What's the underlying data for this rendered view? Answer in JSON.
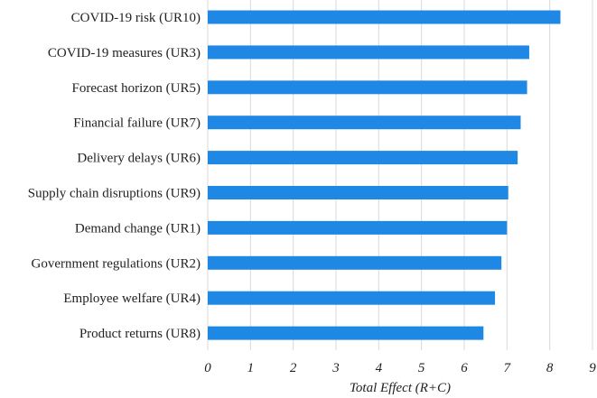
{
  "chart_data": {
    "type": "bar",
    "orientation": "horizontal",
    "title": "",
    "xlabel": "Total Effect (R+C)",
    "ylabel": "",
    "xlim": [
      0,
      9
    ],
    "xticks": [
      0,
      1,
      2,
      3,
      4,
      5,
      6,
      7,
      8,
      9
    ],
    "grid": true,
    "bar_color": "#1f88e5",
    "categories": [
      "COVID-19 risk (UR10)",
      "COVID-19 measures (UR3)",
      "Forecast horizon (UR5)",
      "Financial failure (UR7)",
      "Delivery delays (UR6)",
      "Supply chain disruptions (UR9)",
      "Demand change (UR1)",
      "Government regulations (UR2)",
      "Employee welfare (UR4)",
      "Product returns (UR8)"
    ],
    "values": [
      8.25,
      7.52,
      7.47,
      7.32,
      7.25,
      7.03,
      7.0,
      6.87,
      6.72,
      6.45
    ]
  }
}
